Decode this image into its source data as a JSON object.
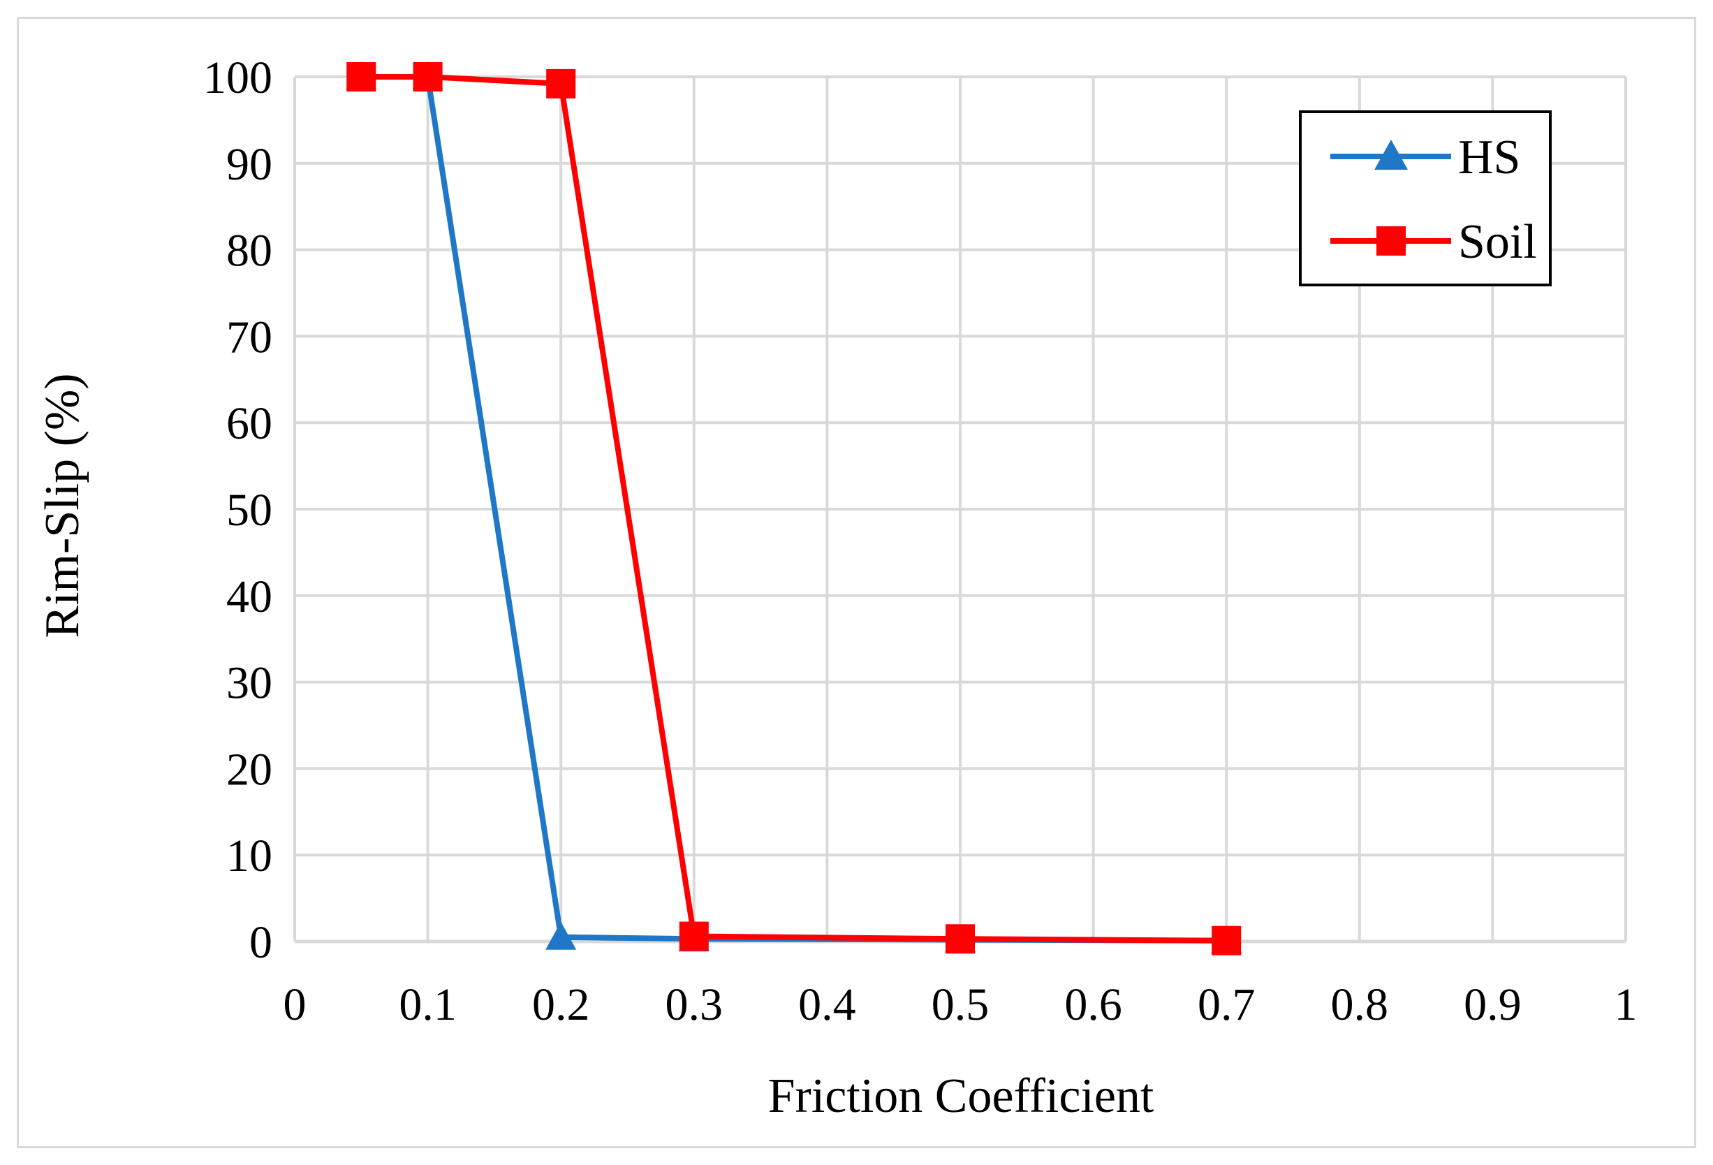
{
  "chart_data": {
    "type": "line",
    "title": "",
    "xlabel": "Friction Coefficient",
    "ylabel": "Rim-Slip (%)",
    "xlim": [
      0,
      1
    ],
    "ylim": [
      0,
      100
    ],
    "x_ticks": [
      "0",
      "0.1",
      "0.2",
      "0.3",
      "0.4",
      "0.5",
      "0.6",
      "0.7",
      "0.8",
      "0.9",
      "1"
    ],
    "y_ticks": [
      "0",
      "10",
      "20",
      "30",
      "40",
      "50",
      "60",
      "70",
      "80",
      "90",
      "100"
    ],
    "grid": true,
    "legend_position": "top-right",
    "series": [
      {
        "name": "HS",
        "color": "#1f77c8",
        "marker": "triangle",
        "x": [
          0.05,
          0.1,
          0.2,
          0.3,
          0.5,
          0.7
        ],
        "y": [
          100,
          100,
          0.5,
          0.3,
          0.2,
          0.1
        ]
      },
      {
        "name": "Soil",
        "color": "#ff0000",
        "marker": "square",
        "x": [
          0.05,
          0.1,
          0.2,
          0.3,
          0.5,
          0.7
        ],
        "y": [
          100,
          100,
          99.2,
          0.6,
          0.3,
          0.1
        ]
      }
    ]
  }
}
